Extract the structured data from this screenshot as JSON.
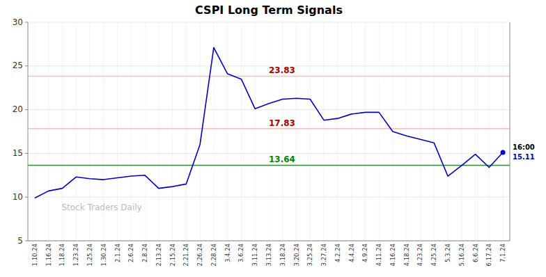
{
  "chart_data": {
    "type": "line",
    "title": "CSPI Long Term Signals",
    "annotations": [
      {
        "text": "Stock Traders Daily"
      }
    ],
    "categories": [
      "1.10.24",
      "1.16.24",
      "1.18.24",
      "1.23.24",
      "1.25.24",
      "1.30.24",
      "2.1.24",
      "2.6.24",
      "2.8.24",
      "2.13.24",
      "2.15.24",
      "2.21.24",
      "2.26.24",
      "2.28.24",
      "3.4.24",
      "3.6.24",
      "3.11.24",
      "3.13.24",
      "3.18.24",
      "3.20.24",
      "3.25.24",
      "3.27.24",
      "4.2.24",
      "4.4.24",
      "4.9.24",
      "4.11.24",
      "4.16.24",
      "4.18.24",
      "4.23.24",
      "4.25.24",
      "5.3.24",
      "5.16.24",
      "6.6.24",
      "6.17.24",
      "7.1.24"
    ],
    "values": [
      9.9,
      10.7,
      11.0,
      12.3,
      12.1,
      12.0,
      12.2,
      12.4,
      12.5,
      11.0,
      11.2,
      11.5,
      16.0,
      27.1,
      24.1,
      23.5,
      20.1,
      20.7,
      21.2,
      21.3,
      21.2,
      18.8,
      19.0,
      19.5,
      19.7,
      19.7,
      17.5,
      17.0,
      16.6,
      16.2,
      12.4,
      13.6,
      14.9,
      13.4,
      15.11
    ],
    "color": "#0000cc",
    "ylim": [
      5,
      30
    ],
    "yticks": [
      5,
      10,
      15,
      20,
      25,
      30
    ],
    "grid": true,
    "hlines": [
      {
        "value": 23.83,
        "label": "23.83",
        "color": "#ffbbbb",
        "label_color": "#aa0000"
      },
      {
        "value": 17.83,
        "label": "17.83",
        "color": "#ffbbbb",
        "label_color": "#aa0000"
      },
      {
        "value": 13.64,
        "label": "13.64",
        "color": "#00aa00",
        "label_color": "#008800"
      }
    ],
    "last_label": "16:00",
    "last_value_label": "15.11",
    "last_dot_color": "#0000cc"
  }
}
